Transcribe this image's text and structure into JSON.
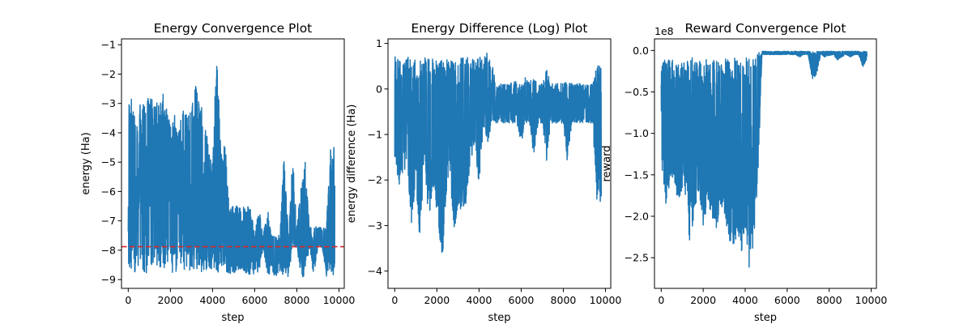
{
  "colors": {
    "series": "#1f77b4",
    "reference": "#d62728"
  },
  "chart_data": [
    {
      "type": "line",
      "title": "Energy Convergence Plot",
      "xlabel": "step",
      "ylabel": "energy (Ha)",
      "xlim": [
        -320,
        10250
      ],
      "ylim": [
        -9.3,
        -0.8
      ],
      "xticks": [
        0,
        2000,
        4000,
        6000,
        8000,
        10000
      ],
      "xtick_labels": [
        "0",
        "2000",
        "4000",
        "6000",
        "8000",
        "10000"
      ],
      "yticks": [
        -9,
        -8,
        -7,
        -6,
        -5,
        -4,
        -3,
        -2,
        -1
      ],
      "ytick_labels": [
        "−9",
        "−8",
        "−7",
        "−6",
        "−5",
        "−4",
        "−3",
        "−2",
        "−1"
      ],
      "reference_line": {
        "y": -7.88,
        "style": "dashed"
      },
      "series": [
        {
          "style": "noisy-envelope",
          "x": [
            0,
            200,
            400,
            600,
            800,
            1000,
            1200,
            1400,
            1600,
            1800,
            2000,
            2200,
            2400,
            2600,
            2800,
            3000,
            3200,
            3400,
            3600,
            3800,
            4000,
            4200,
            4400,
            4600,
            4800,
            5000,
            5200,
            5400,
            5600,
            5800,
            6000,
            6200,
            6400,
            6600,
            6800,
            7000,
            7200,
            7400,
            7600,
            7800,
            8000,
            8200,
            8400,
            8600,
            8800,
            9000,
            9200,
            9400,
            9600,
            9800
          ],
          "upper": [
            -2.6,
            -2.9,
            -3.6,
            -2.8,
            -2.9,
            -2.8,
            -2.9,
            -3.0,
            -2.6,
            -2.8,
            -3.8,
            -3.4,
            -3.9,
            -3.0,
            -3.4,
            -3.1,
            -2.4,
            -3.0,
            -3.2,
            -4.5,
            -5.0,
            -1.15,
            -4.6,
            -4.4,
            -6.5,
            -6.5,
            -6.5,
            -6.5,
            -6.5,
            -6.5,
            -7.5,
            -6.5,
            -7.5,
            -6.5,
            -7.5,
            -7.5,
            -7.5,
            -4.5,
            -7.5,
            -4.8,
            -7.2,
            -5.8,
            -4.9,
            -7.2,
            -7.2,
            -7.2,
            -7.2,
            -7.2,
            -4.5,
            -4.5
          ],
          "lower": [
            -8.6,
            -8.7,
            -8.8,
            -8.6,
            -8.8,
            -8.7,
            -8.8,
            -8.6,
            -8.8,
            -8.7,
            -8.8,
            -8.7,
            -8.8,
            -8.7,
            -8.8,
            -8.6,
            -8.7,
            -8.8,
            -8.7,
            -8.8,
            -8.6,
            -8.8,
            -8.8,
            -8.8,
            -8.8,
            -8.8,
            -8.8,
            -8.6,
            -8.9,
            -8.9,
            -8.8,
            -8.8,
            -7.9,
            -8.8,
            -8.9,
            -8.9,
            -8.8,
            -8.9,
            -8.9,
            -7.9,
            -7.9,
            -8.9,
            -8.9,
            -7.9,
            -8.9,
            -7.9,
            -7.9,
            -8.9,
            -8.9,
            -8.9
          ],
          "n_points": 9800
        }
      ]
    },
    {
      "type": "line",
      "title": "Energy Difference (Log) Plot",
      "xlabel": "step",
      "ylabel": "energy difference (Ha)",
      "xlim": [
        -320,
        10250
      ],
      "ylim": [
        -4.38,
        1.1
      ],
      "xticks": [
        0,
        2000,
        4000,
        6000,
        8000,
        10000
      ],
      "xtick_labels": [
        "0",
        "2000",
        "4000",
        "6000",
        "8000",
        "10000"
      ],
      "yticks": [
        -4,
        -3,
        -2,
        -1,
        0,
        1
      ],
      "ytick_labels": [
        "−4",
        "−3",
        "−2",
        "−1",
        "0",
        "1"
      ],
      "series": [
        {
          "style": "noisy-envelope",
          "x": [
            0,
            200,
            400,
            600,
            800,
            1000,
            1200,
            1400,
            1600,
            1800,
            2000,
            2200,
            2400,
            2600,
            2800,
            3000,
            3200,
            3400,
            3600,
            3800,
            4000,
            4200,
            4400,
            4600,
            4800,
            5000,
            5200,
            5400,
            5600,
            5800,
            6000,
            6200,
            6400,
            6600,
            6800,
            7000,
            7200,
            7400,
            7600,
            7800,
            8000,
            8200,
            8400,
            8600,
            8800,
            9000,
            9200,
            9400,
            9600,
            9800
          ],
          "upper": [
            0.72,
            0.7,
            0.68,
            0.72,
            0.7,
            0.66,
            0.72,
            0.7,
            0.7,
            0.68,
            0.72,
            0.62,
            0.7,
            0.66,
            0.62,
            0.72,
            0.7,
            0.72,
            0.7,
            0.64,
            0.72,
            0.66,
            0.82,
            0.6,
            0.12,
            0.12,
            0.1,
            0.12,
            0.28,
            0.12,
            0.12,
            0.26,
            0.12,
            0.4,
            0.12,
            0.12,
            0.45,
            0.12,
            0.12,
            0.12,
            0.12,
            0.18,
            0.12,
            0.12,
            0.12,
            0.1,
            0.12,
            0.12,
            0.55,
            0.54
          ],
          "lower": [
            -1.5,
            -2.2,
            -1.9,
            -2.0,
            -3.0,
            -2.0,
            -3.4,
            -1.5,
            -2.9,
            -2.2,
            -2.7,
            -4.2,
            -2.8,
            -2.0,
            -3.3,
            -2.7,
            -2.6,
            -2.5,
            -1.6,
            -1.3,
            -2.1,
            -0.9,
            -1.2,
            -0.75,
            -0.75,
            -0.75,
            -0.75,
            -0.75,
            -0.75,
            -0.75,
            -1.2,
            -0.75,
            -0.75,
            -1.5,
            -0.75,
            -0.75,
            -1.6,
            -0.75,
            -0.75,
            -0.75,
            -0.75,
            -1.65,
            -0.75,
            -0.75,
            -0.75,
            -0.75,
            -0.75,
            -0.75,
            -2.65,
            -2.6
          ],
          "n_points": 9800
        }
      ]
    },
    {
      "type": "line",
      "title": "Reward Convergence Plot",
      "xlabel": "step",
      "ylabel": "reward",
      "offset_label": "1e8",
      "xlim": [
        -320,
        10250
      ],
      "ylim": [
        -2.87,
        0.14
      ],
      "xticks": [
        0,
        2000,
        4000,
        6000,
        8000,
        10000
      ],
      "xtick_labels": [
        "0",
        "2000",
        "4000",
        "6000",
        "8000",
        "10000"
      ],
      "yticks": [
        -2.5,
        -2.0,
        -1.5,
        -1.0,
        -0.5,
        0.0
      ],
      "ytick_labels": [
        "−2.5",
        "−2.0",
        "−1.5",
        "−1.0",
        "−0.5",
        "0.0"
      ],
      "series": [
        {
          "style": "noisy-envelope",
          "x": [
            0,
            200,
            400,
            600,
            800,
            1000,
            1200,
            1400,
            1600,
            1800,
            2000,
            2200,
            2400,
            2600,
            2800,
            3000,
            3200,
            3400,
            3600,
            3800,
            4000,
            4200,
            4400,
            4600,
            4800,
            5000,
            5200,
            5400,
            5600,
            5800,
            6000,
            6200,
            6400,
            6600,
            6800,
            7000,
            7200,
            7400,
            7600,
            7800,
            8000,
            8200,
            8400,
            8600,
            8800,
            9000,
            9200,
            9400,
            9600,
            9800
          ],
          "upper": [
            -0.2,
            -0.08,
            -0.1,
            -0.12,
            -0.08,
            -0.1,
            -0.12,
            -0.08,
            -0.1,
            -0.08,
            -0.12,
            -0.1,
            -0.08,
            -0.1,
            -0.12,
            -0.08,
            -0.1,
            -0.08,
            -0.1,
            -0.08,
            -0.1,
            -0.05,
            -0.05,
            -0.02,
            -0.01,
            -0.01,
            -0.01,
            -0.01,
            -0.01,
            -0.01,
            -0.01,
            -0.01,
            -0.01,
            -0.01,
            -0.01,
            -0.01,
            -0.01,
            -0.01,
            -0.01,
            -0.01,
            -0.01,
            -0.01,
            -0.01,
            -0.01,
            -0.01,
            -0.01,
            -0.01,
            -0.01,
            -0.01,
            -0.01
          ],
          "lower": [
            -1.3,
            -1.95,
            -1.6,
            -1.5,
            -1.9,
            -1.7,
            -1.8,
            -2.5,
            -1.9,
            -1.7,
            -2.2,
            -1.8,
            -2.0,
            -2.25,
            -1.9,
            -2.05,
            -2.3,
            -2.35,
            -2.3,
            -2.5,
            -2.1,
            -2.75,
            -2.3,
            -1.6,
            -0.05,
            -0.05,
            -0.05,
            -0.05,
            -0.05,
            -0.05,
            -0.05,
            -0.05,
            -0.05,
            -0.08,
            -0.05,
            -0.05,
            -0.35,
            -0.3,
            -0.05,
            -0.08,
            -0.06,
            -0.05,
            -0.12,
            -0.08,
            -0.05,
            -0.08,
            -0.05,
            -0.05,
            -0.2,
            -0.1
          ],
          "n_points": 9800
        }
      ]
    }
  ]
}
